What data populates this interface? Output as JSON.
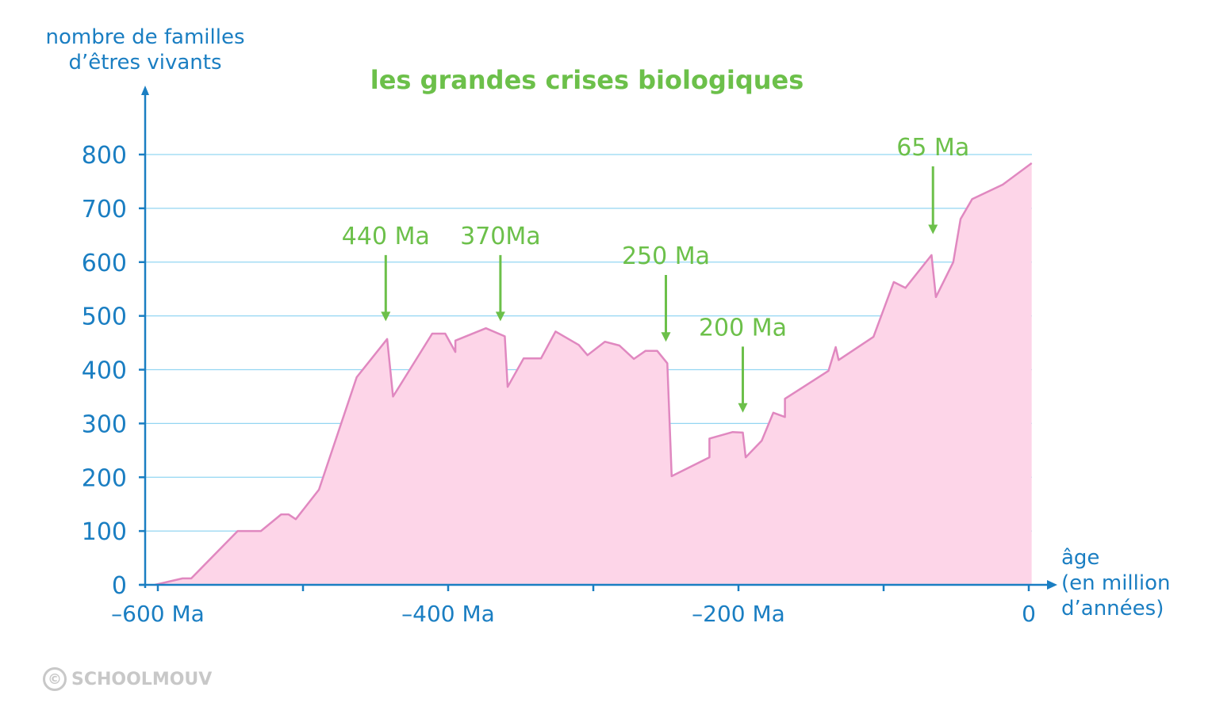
{
  "chart_data": {
    "type": "area",
    "title": "les grandes crises biologiques",
    "ylabel": [
      "nombre de familles",
      "d’êtres vivants"
    ],
    "xlabel": [
      "âge",
      "(en million",
      "d’années)"
    ],
    "xlim": [
      -600,
      0
    ],
    "ylim": [
      0,
      800
    ],
    "grid": true,
    "yticks": [
      0,
      100,
      200,
      300,
      400,
      500,
      600,
      700,
      800
    ],
    "ytick_labels": [
      "0",
      "100",
      "200",
      "300",
      "400",
      "500",
      "600",
      "700",
      "800"
    ],
    "xticks": [
      -600,
      -500,
      -400,
      -300,
      -200,
      -100,
      0
    ],
    "xtick_labels": [
      {
        "value": -600,
        "label": "–600 Ma"
      },
      {
        "value": -400,
        "label": "–400 Ma"
      },
      {
        "value": -200,
        "label": "–200 Ma"
      },
      {
        "value": 0,
        "label": "0"
      }
    ],
    "series": [
      {
        "name": "nombre de familles",
        "points": [
          [
            -602,
            0
          ],
          [
            -583,
            12
          ],
          [
            -577,
            12
          ],
          [
            -545,
            100
          ],
          [
            -529,
            100
          ],
          [
            -515,
            131
          ],
          [
            -510,
            131
          ],
          [
            -505,
            122
          ],
          [
            -489,
            177
          ],
          [
            -463,
            386
          ],
          [
            -442,
            457
          ],
          [
            -438,
            350
          ],
          [
            -411,
            467
          ],
          [
            -402,
            467
          ],
          [
            -395,
            433
          ],
          [
            -395,
            454
          ],
          [
            -374,
            477
          ],
          [
            -361,
            462
          ],
          [
            -359,
            368
          ],
          [
            -348,
            421
          ],
          [
            -336,
            421
          ],
          [
            -326,
            471
          ],
          [
            -310,
            446
          ],
          [
            -304,
            427
          ],
          [
            -292,
            452
          ],
          [
            -282,
            445
          ],
          [
            -272,
            420
          ],
          [
            -264,
            435
          ],
          [
            -256,
            435
          ],
          [
            -249,
            412
          ],
          [
            -246,
            202
          ],
          [
            -220,
            237
          ],
          [
            -220,
            272
          ],
          [
            -204,
            284
          ],
          [
            -197,
            283
          ],
          [
            -195,
            237
          ],
          [
            -184,
            268
          ],
          [
            -176,
            320
          ],
          [
            -168,
            312
          ],
          [
            -168,
            346
          ],
          [
            -138,
            398
          ],
          [
            -133,
            442
          ],
          [
            -131,
            418
          ],
          [
            -107,
            461
          ],
          [
            -93,
            563
          ],
          [
            -85,
            552
          ],
          [
            -67,
            613
          ],
          [
            -64,
            535
          ],
          [
            -52,
            600
          ],
          [
            -47,
            680
          ],
          [
            -39,
            717
          ],
          [
            -18,
            744
          ],
          [
            2,
            784
          ]
        ]
      }
    ],
    "annotations": [
      {
        "label": "440 Ma",
        "x": -443,
        "from": 613,
        "to": 490
      },
      {
        "label": "370Ma",
        "x": -364,
        "from": 613,
        "to": 490
      },
      {
        "label": "250 Ma",
        "x": -250,
        "from": 576,
        "to": 452
      },
      {
        "label": "200 Ma",
        "x": -197,
        "from": 443,
        "to": 320
      },
      {
        "label": "65 Ma",
        "x": -66,
        "from": 778,
        "to": 652
      }
    ],
    "colors": {
      "axis": "#1a7ec2",
      "grid": "#93d6f2",
      "fill": "#fdd5e8",
      "line": "#e088c0",
      "annotation": "#6cc04a"
    }
  },
  "watermark": {
    "symbol": "©",
    "text": "SCHOOLMOUV"
  }
}
